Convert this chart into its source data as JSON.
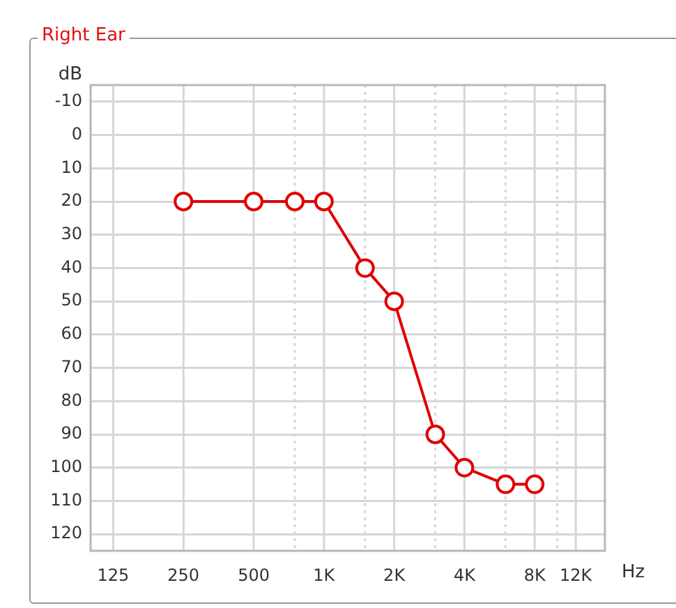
{
  "chart_data": {
    "type": "line",
    "title": "Right Ear",
    "xlabel": "Hz",
    "ylabel": "dB",
    "log": "x",
    "x": [
      250,
      500,
      750,
      1000,
      1500,
      2000,
      3000,
      4000,
      6000,
      8000
    ],
    "series": [
      {
        "color": "#e00000",
        "values": [
          20,
          20,
          20,
          20,
          40,
          50,
          90,
          100,
          105,
          105
        ]
      }
    ],
    "xlim": [
      100,
      16000
    ],
    "xticks": [
      125,
      250,
      500,
      {
        "value": 750,
        "label": null
      },
      {
        "value": 1000,
        "label": "1K"
      },
      {
        "value": 1500,
        "label": null
      },
      {
        "value": 2000,
        "label": "2K"
      },
      {
        "value": 3000,
        "label": null
      },
      {
        "value": 4000,
        "label": "4K"
      },
      {
        "value": 6000,
        "label": null
      },
      {
        "value": 8000,
        "label": "8K"
      },
      {
        "value": 10000,
        "label": null
      },
      {
        "value": 12000,
        "label": "12K"
      }
    ],
    "ylim": [
      125,
      -15
    ],
    "yticks": [
      -10,
      0,
      10,
      20,
      30,
      40,
      50,
      60,
      70,
      80,
      90,
      100,
      110,
      120
    ],
    "grid": true,
    "legend": false,
    "marker": "circle",
    "line_style": "solid"
  }
}
